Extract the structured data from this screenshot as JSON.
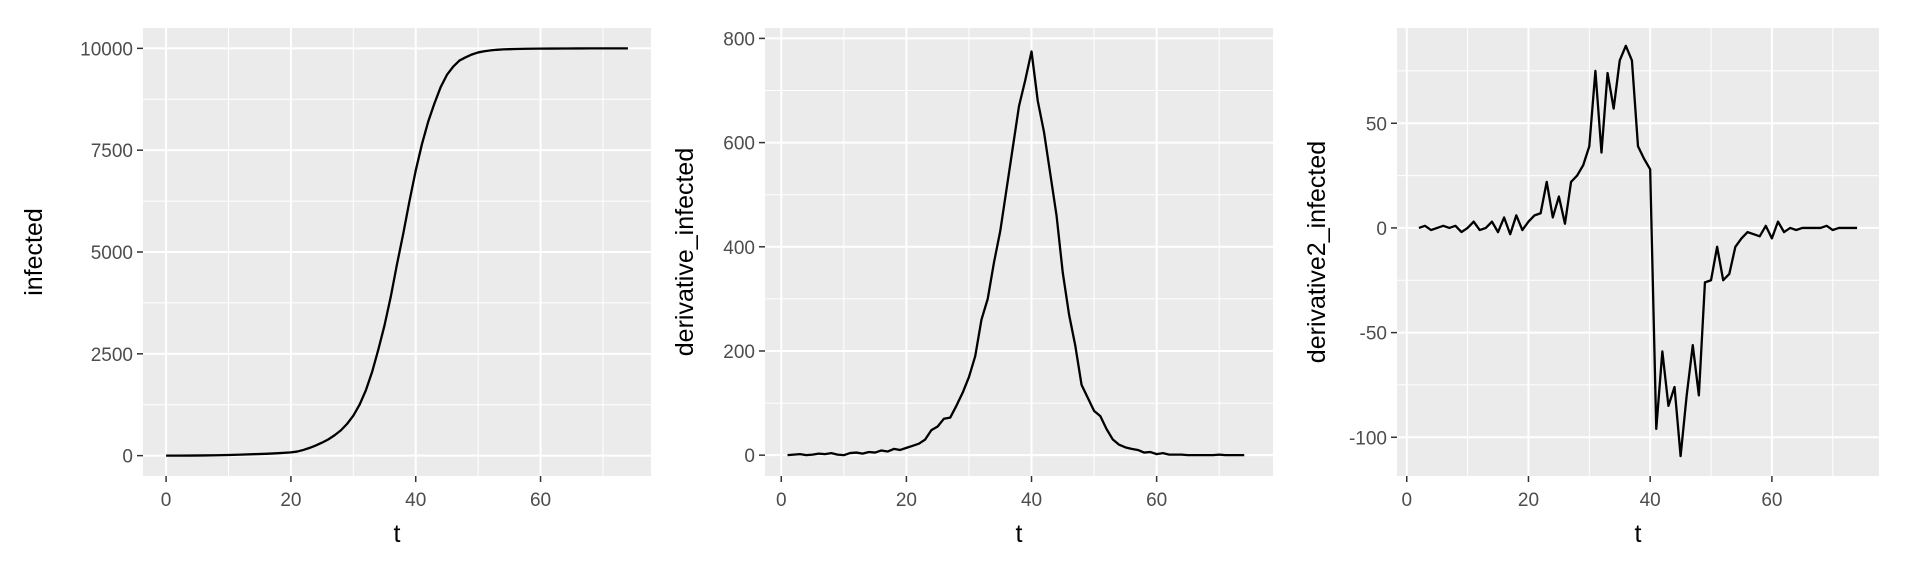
{
  "colors": {
    "panel": "#ebebeb",
    "grid": "#ffffff",
    "line": "#000000",
    "tick_text": "#4d4d4d"
  },
  "chart_data": [
    {
      "type": "line",
      "xlabel": "t",
      "ylabel": "infected",
      "xlim": [
        -3.7,
        77.7
      ],
      "ylim": [
        -500,
        10500
      ],
      "xticks": [
        0,
        20,
        40,
        60
      ],
      "xtick_labels": [
        "0",
        "20",
        "40",
        "60"
      ],
      "yticks": [
        0,
        2500,
        5000,
        7500,
        10000
      ],
      "ytick_labels": [
        "0",
        "2500",
        "5000",
        "7500",
        "10000"
      ],
      "grid": true,
      "series": [
        {
          "x": [
            0,
            2,
            4,
            6,
            8,
            10,
            12,
            14,
            16,
            18,
            20,
            21,
            22,
            23,
            24,
            25,
            26,
            27,
            28,
            29,
            30,
            31,
            32,
            33,
            34,
            35,
            36,
            37,
            38,
            39,
            40,
            41,
            42,
            43,
            44,
            45,
            46,
            47,
            48,
            49,
            50,
            51,
            52,
            53,
            54,
            55,
            56,
            58,
            60,
            62,
            64,
            66,
            68,
            70,
            72,
            74
          ],
          "y": [
            0,
            0,
            2,
            5,
            10,
            15,
            25,
            35,
            45,
            60,
            80,
            100,
            140,
            190,
            250,
            320,
            400,
            500,
            620,
            780,
            980,
            1250,
            1600,
            2050,
            2600,
            3200,
            3900,
            4700,
            5450,
            6250,
            7000,
            7650,
            8200,
            8650,
            9050,
            9350,
            9550,
            9700,
            9780,
            9850,
            9900,
            9930,
            9950,
            9965,
            9975,
            9980,
            9985,
            9990,
            9993,
            9995,
            9997,
            9998,
            9999,
            10000,
            10000,
            10000
          ]
        }
      ]
    },
    {
      "type": "line",
      "xlabel": "t",
      "ylabel": "derivative_infected",
      "xlim": [
        -2.6,
        78.6
      ],
      "ylim": [
        -40,
        820
      ],
      "xticks": [
        0,
        20,
        40,
        60
      ],
      "xtick_labels": [
        "0",
        "20",
        "40",
        "60"
      ],
      "yticks": [
        0,
        200,
        400,
        600,
        800
      ],
      "ytick_labels": [
        "0",
        "200",
        "400",
        "600",
        "800"
      ],
      "grid": true,
      "series": [
        {
          "x": [
            1,
            2,
            3,
            4,
            5,
            6,
            7,
            8,
            9,
            10,
            11,
            12,
            13,
            14,
            15,
            16,
            17,
            18,
            19,
            20,
            21,
            22,
            23,
            24,
            25,
            26,
            27,
            28,
            29,
            30,
            31,
            32,
            33,
            34,
            35,
            36,
            37,
            38,
            39,
            40,
            41,
            42,
            43,
            44,
            45,
            46,
            47,
            48,
            49,
            50,
            51,
            52,
            53,
            54,
            55,
            56,
            57,
            58,
            59,
            60,
            61,
            62,
            63,
            64,
            65,
            66,
            67,
            68,
            69,
            70,
            71,
            72,
            73,
            74
          ],
          "y": [
            0,
            1,
            2,
            0,
            1,
            3,
            2,
            4,
            1,
            0,
            4,
            5,
            3,
            6,
            5,
            9,
            7,
            12,
            10,
            14,
            18,
            22,
            30,
            48,
            55,
            70,
            72,
            95,
            120,
            150,
            190,
            260,
            300,
            370,
            430,
            510,
            590,
            670,
            720,
            775,
            680,
            620,
            540,
            460,
            350,
            270,
            210,
            135,
            110,
            85,
            75,
            50,
            30,
            20,
            15,
            12,
            10,
            5,
            6,
            2,
            4,
            1,
            1,
            1,
            0,
            0,
            0,
            0,
            0,
            1,
            0,
            0,
            0,
            0
          ]
        }
      ]
    },
    {
      "type": "line",
      "xlabel": "t",
      "ylabel": "derivative2_infected",
      "xlim": [
        -1.6,
        77.6
      ],
      "ylim": [
        -118.5,
        95.5
      ],
      "xticks": [
        0,
        20,
        40,
        60
      ],
      "xtick_labels": [
        "0",
        "20",
        "40",
        "60"
      ],
      "yticks": [
        -100,
        -50,
        0,
        50
      ],
      "ytick_labels": [
        "-100",
        "-50",
        "0",
        "50"
      ],
      "grid": true,
      "series": [
        {
          "x": [
            2,
            3,
            4,
            5,
            6,
            7,
            8,
            9,
            10,
            11,
            12,
            13,
            14,
            15,
            16,
            17,
            18,
            19,
            20,
            21,
            22,
            23,
            24,
            25,
            26,
            27,
            28,
            29,
            30,
            31,
            32,
            33,
            34,
            35,
            36,
            37,
            38,
            39,
            40,
            41,
            42,
            43,
            44,
            45,
            46,
            47,
            48,
            49,
            50,
            51,
            52,
            53,
            54,
            55,
            56,
            57,
            58,
            59,
            60,
            61,
            62,
            63,
            64,
            65,
            66,
            67,
            68,
            69,
            70,
            71,
            72,
            73,
            74
          ],
          "y": [
            0,
            1,
            -1,
            0,
            1,
            0,
            1,
            -2,
            0,
            3,
            -1,
            0,
            3,
            -2,
            5,
            -3,
            6,
            -1,
            3,
            6,
            7,
            22,
            5,
            15,
            2,
            22,
            25,
            30,
            39,
            75,
            36,
            74,
            57,
            80,
            87,
            80,
            39,
            33,
            28,
            -96,
            -59,
            -85,
            -76,
            -109,
            -80,
            -56,
            -80,
            -26,
            -25,
            -9,
            -25,
            -22,
            -9,
            -5,
            -2,
            -3,
            -4,
            1,
            -5,
            3,
            -2,
            0,
            -1,
            0,
            0,
            0,
            0,
            1,
            -1,
            0,
            0,
            0,
            0
          ]
        }
      ]
    }
  ]
}
